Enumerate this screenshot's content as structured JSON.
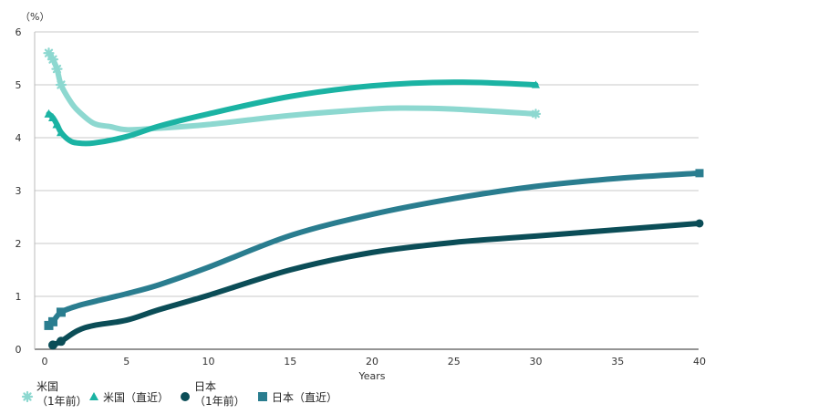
{
  "chart_data": {
    "type": "line",
    "unit_label": "（%）",
    "xlabel": "Years",
    "xlim": [
      0,
      40
    ],
    "ylim": [
      0,
      6
    ],
    "x_ticks": [
      0,
      5,
      10,
      15,
      20,
      25,
      30,
      35,
      40
    ],
    "y_ticks": [
      0,
      1,
      2,
      3,
      4,
      5,
      6
    ],
    "grid": "horizontal",
    "legend_position": "bottom-left",
    "series": [
      {
        "name": "米国（1年前）",
        "legend_lines": [
          "米国",
          "（1年前）"
        ],
        "color": "#8dd8d0",
        "marker": "asterisk",
        "x": [
          0.25,
          0.5,
          0.75,
          1,
          1.5,
          2,
          3,
          4,
          5,
          7,
          10,
          15,
          20,
          22,
          25,
          30
        ],
        "y": [
          5.6,
          5.48,
          5.3,
          5.0,
          4.72,
          4.52,
          4.27,
          4.21,
          4.15,
          4.18,
          4.25,
          4.42,
          4.54,
          4.56,
          4.54,
          4.45
        ]
      },
      {
        "name": "米国（直近）",
        "legend_lines": [
          "米国（直近）"
        ],
        "color": "#1bb3a3",
        "marker": "triangle",
        "x": [
          0.25,
          0.5,
          0.75,
          1,
          1.5,
          2,
          3,
          5,
          7,
          10,
          15,
          20,
          25,
          30
        ],
        "y": [
          4.45,
          4.38,
          4.25,
          4.1,
          3.95,
          3.9,
          3.9,
          4.02,
          4.22,
          4.45,
          4.78,
          4.98,
          5.05,
          5.0
        ]
      },
      {
        "name": "日本（1年前）",
        "legend_lines": [
          "日本",
          "（1年前）"
        ],
        "color": "#0b4d57",
        "marker": "circle",
        "x": [
          0.5,
          1,
          2,
          3,
          5,
          7,
          10,
          15,
          20,
          25,
          30,
          40
        ],
        "y": [
          0.08,
          0.15,
          0.35,
          0.45,
          0.55,
          0.75,
          1.02,
          1.5,
          1.83,
          2.02,
          2.14,
          2.38
        ]
      },
      {
        "name": "日本（直近）",
        "legend_lines": [
          "日本（直近）"
        ],
        "color": "#2a7d8f",
        "marker": "square",
        "x": [
          0.25,
          0.5,
          1,
          2,
          3,
          5,
          7,
          10,
          15,
          20,
          25,
          30,
          35,
          40
        ],
        "y": [
          0.45,
          0.52,
          0.7,
          0.82,
          0.9,
          1.05,
          1.22,
          1.55,
          2.15,
          2.55,
          2.85,
          3.08,
          3.23,
          3.33
        ]
      }
    ]
  }
}
